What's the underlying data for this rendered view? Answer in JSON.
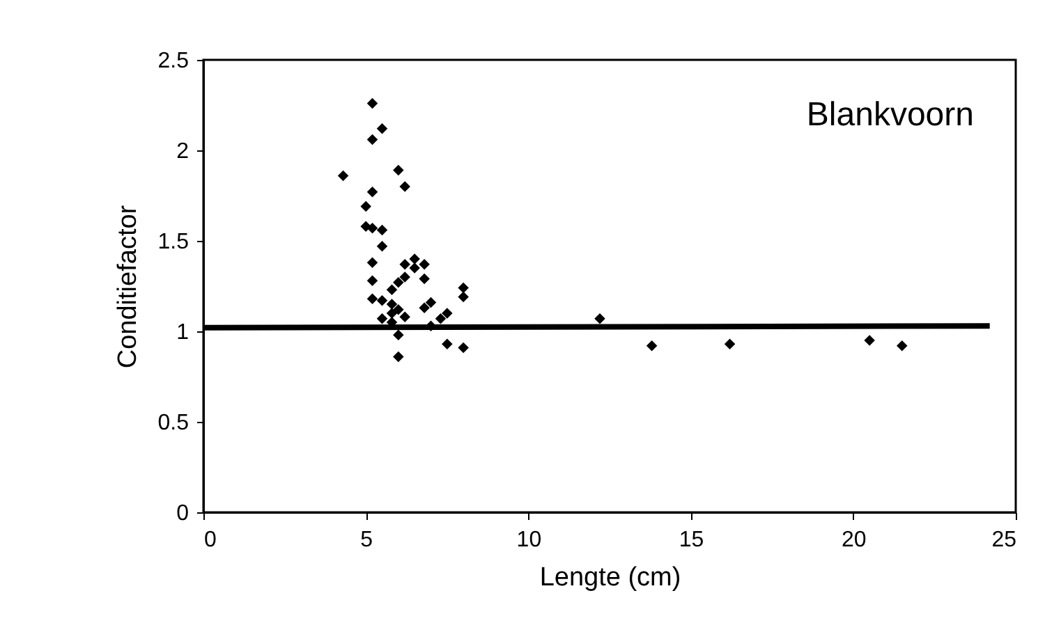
{
  "chart_data": {
    "type": "scatter",
    "xlabel": "Lengte (cm)",
    "ylabel": "Conditiefactor",
    "annotations": [
      "Blankvoorn"
    ],
    "xlim": [
      0,
      25
    ],
    "xticks": [
      0,
      5,
      10,
      15,
      20,
      25
    ],
    "ylim": [
      0,
      2.5
    ],
    "yticks": [
      0,
      0.5,
      1,
      1.5,
      2,
      2.5
    ],
    "grid": false,
    "marker": "diamond",
    "series": [
      {
        "color": "#000000",
        "x": [
          4.3,
          5.2,
          5.2,
          5.5,
          6.0,
          6.2,
          5.2,
          5.0,
          5.0,
          5.2,
          5.5,
          5.5,
          5.2,
          5.2,
          5.2,
          5.5,
          5.8,
          6.0,
          6.2,
          6.2,
          6.5,
          6.8,
          6.8,
          6.5,
          6.8,
          7.0,
          7.0,
          7.3,
          7.5,
          7.5,
          8.0,
          8.0,
          8.0,
          5.8,
          5.8,
          6.0,
          5.5,
          5.8,
          6.0,
          6.0,
          6.2,
          12.2,
          13.8,
          16.2,
          20.5,
          21.5
        ],
        "values": [
          1.86,
          2.26,
          2.06,
          2.12,
          1.89,
          1.8,
          1.77,
          1.69,
          1.58,
          1.57,
          1.56,
          1.47,
          1.38,
          1.28,
          1.18,
          1.17,
          1.23,
          1.27,
          1.3,
          1.37,
          1.4,
          1.37,
          1.29,
          1.35,
          1.13,
          1.16,
          1.03,
          1.07,
          1.1,
          0.93,
          0.91,
          1.19,
          1.24,
          1.15,
          1.1,
          1.12,
          1.07,
          1.05,
          0.98,
          0.86,
          1.08,
          1.07,
          0.92,
          0.93,
          0.95,
          0.92
        ]
      },
      {
        "type": "line",
        "marker": "none",
        "color": "#000000",
        "x": [
          0,
          24.2
        ],
        "values": [
          1.02,
          1.03
        ]
      }
    ]
  }
}
